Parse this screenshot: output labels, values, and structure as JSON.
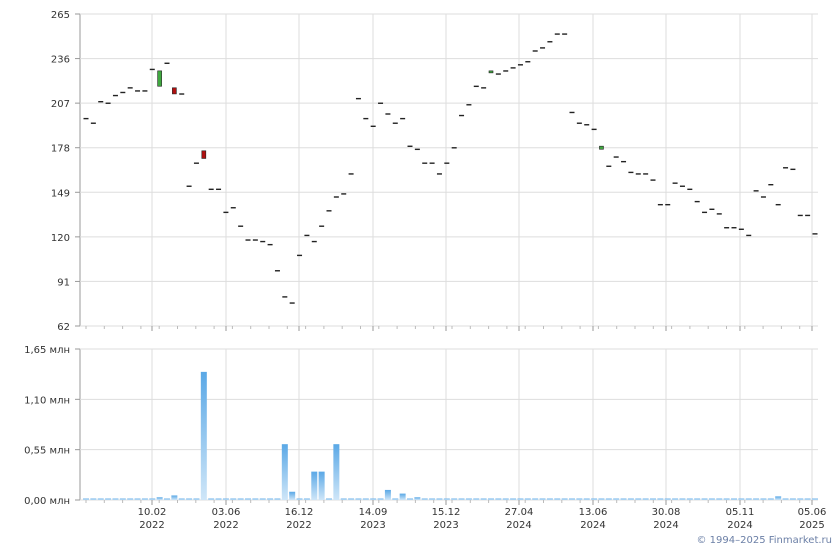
{
  "chart_data": [
    {
      "type": "candlestick",
      "ylim": [
        62,
        265
      ],
      "yticks": [
        "265",
        "236",
        "207",
        "178",
        "149",
        "120",
        "91",
        "62"
      ],
      "grid": true,
      "x_labels": [
        {
          "day": "10.02",
          "year": "2022"
        },
        {
          "day": "03.06",
          "year": "2022"
        },
        {
          "day": "16.12",
          "year": "2022"
        },
        {
          "day": "14.09",
          "year": "2023"
        },
        {
          "day": "15.12",
          "year": "2023"
        },
        {
          "day": "27.04",
          "year": "2024"
        },
        {
          "day": "13.06",
          "year": "2024"
        },
        {
          "day": "30.08",
          "year": "2024"
        },
        {
          "day": "05.11",
          "year": "2024"
        },
        {
          "day": "05.06",
          "year": "2025"
        }
      ],
      "values": [
        {
          "o": 197,
          "c": 197
        },
        {
          "o": 194,
          "c": 194
        },
        {
          "o": 208,
          "c": 208
        },
        {
          "o": 207,
          "c": 207
        },
        {
          "o": 212,
          "c": 212
        },
        {
          "o": 214,
          "c": 214
        },
        {
          "o": 217,
          "c": 217
        },
        {
          "o": 215,
          "c": 215
        },
        {
          "o": 215,
          "c": 215
        },
        {
          "o": 229,
          "c": 229
        },
        {
          "o": 218,
          "c": 228
        },
        {
          "o": 233,
          "c": 233
        },
        {
          "o": 217,
          "c": 213
        },
        {
          "o": 213,
          "c": 213
        },
        {
          "o": 153,
          "c": 153
        },
        {
          "o": 168,
          "c": 168
        },
        {
          "o": 176,
          "c": 171
        },
        {
          "o": 151,
          "c": 151
        },
        {
          "o": 151,
          "c": 151
        },
        {
          "o": 136,
          "c": 136
        },
        {
          "o": 139,
          "c": 139
        },
        {
          "o": 127,
          "c": 127
        },
        {
          "o": 118,
          "c": 118
        },
        {
          "o": 118,
          "c": 118
        },
        {
          "o": 117,
          "c": 117
        },
        {
          "o": 115,
          "c": 115
        },
        {
          "o": 98,
          "c": 98
        },
        {
          "o": 81,
          "c": 81
        },
        {
          "o": 77,
          "c": 77
        },
        {
          "o": 108,
          "c": 108
        },
        {
          "o": 121,
          "c": 121
        },
        {
          "o": 117,
          "c": 117
        },
        {
          "o": 127,
          "c": 127
        },
        {
          "o": 137,
          "c": 137
        },
        {
          "o": 146,
          "c": 146
        },
        {
          "o": 148,
          "c": 148
        },
        {
          "o": 161,
          "c": 161
        },
        {
          "o": 210,
          "c": 210
        },
        {
          "o": 197,
          "c": 197
        },
        {
          "o": 192,
          "c": 192
        },
        {
          "o": 207,
          "c": 207
        },
        {
          "o": 200,
          "c": 200
        },
        {
          "o": 194,
          "c": 194
        },
        {
          "o": 197,
          "c": 197
        },
        {
          "o": 179,
          "c": 179
        },
        {
          "o": 177,
          "c": 177
        },
        {
          "o": 168,
          "c": 168
        },
        {
          "o": 168,
          "c": 168
        },
        {
          "o": 161,
          "c": 161
        },
        {
          "o": 168,
          "c": 168
        },
        {
          "o": 178,
          "c": 178
        },
        {
          "o": 199,
          "c": 199
        },
        {
          "o": 206,
          "c": 206
        },
        {
          "o": 218,
          "c": 218
        },
        {
          "o": 217,
          "c": 217
        },
        {
          "o": 227,
          "c": 228
        },
        {
          "o": 226,
          "c": 226
        },
        {
          "o": 228,
          "c": 228
        },
        {
          "o": 230,
          "c": 230
        },
        {
          "o": 232,
          "c": 232
        },
        {
          "o": 234,
          "c": 234
        },
        {
          "o": 241,
          "c": 241
        },
        {
          "o": 243,
          "c": 243
        },
        {
          "o": 247,
          "c": 247
        },
        {
          "o": 252,
          "c": 252
        },
        {
          "o": 252,
          "c": 252
        },
        {
          "o": 201,
          "c": 201
        },
        {
          "o": 194,
          "c": 194
        },
        {
          "o": 193,
          "c": 193
        },
        {
          "o": 190,
          "c": 190
        },
        {
          "o": 177,
          "c": 179
        },
        {
          "o": 166,
          "c": 166
        },
        {
          "o": 172,
          "c": 172
        },
        {
          "o": 169,
          "c": 169
        },
        {
          "o": 162,
          "c": 162
        },
        {
          "o": 161,
          "c": 161
        },
        {
          "o": 161,
          "c": 161
        },
        {
          "o": 157,
          "c": 157
        },
        {
          "o": 141,
          "c": 141
        },
        {
          "o": 141,
          "c": 141
        },
        {
          "o": 155,
          "c": 155
        },
        {
          "o": 153,
          "c": 153
        },
        {
          "o": 151,
          "c": 151
        },
        {
          "o": 143,
          "c": 143
        },
        {
          "o": 136,
          "c": 136
        },
        {
          "o": 138,
          "c": 138
        },
        {
          "o": 135,
          "c": 135
        },
        {
          "o": 126,
          "c": 126
        },
        {
          "o": 126,
          "c": 126
        },
        {
          "o": 125,
          "c": 125
        },
        {
          "o": 121,
          "c": 121
        },
        {
          "o": 150,
          "c": 150
        },
        {
          "o": 146,
          "c": 146
        },
        {
          "o": 154,
          "c": 154
        },
        {
          "o": 141,
          "c": 141
        },
        {
          "o": 165,
          "c": 165
        },
        {
          "o": 164,
          "c": 164
        },
        {
          "o": 134,
          "c": 134
        },
        {
          "o": 134,
          "c": 134
        },
        {
          "o": 122,
          "c": 122
        }
      ],
      "colors": {
        "up": "#3fa83f",
        "down": "#b01010",
        "flat": "#222222"
      }
    },
    {
      "type": "bar",
      "ylim": [
        0,
        1.65
      ],
      "yticks": [
        "1,65 млн",
        "1,10 млн",
        "0,55 млн",
        "0,00 млн"
      ],
      "grid": true,
      "values": [
        0.01,
        0.01,
        0.01,
        0.01,
        0.01,
        0.01,
        0.01,
        0.01,
        0.01,
        0.01,
        0.03,
        0.01,
        0.05,
        0.01,
        0.01,
        0.01,
        1.4,
        0.01,
        0.01,
        0.01,
        0.01,
        0.01,
        0.01,
        0.01,
        0.01,
        0.01,
        0.01,
        0.61,
        0.09,
        0.01,
        0.01,
        0.31,
        0.31,
        0.01,
        0.61,
        0.01,
        0.01,
        0.01,
        0.01,
        0.01,
        0.01,
        0.11,
        0.01,
        0.07,
        0.01,
        0.03,
        0.01,
        0.01,
        0.01,
        0.01,
        0.01,
        0.01,
        0.01,
        0.01,
        0.01,
        0.01,
        0.01,
        0.01,
        0.01,
        0.01,
        0.01,
        0.01,
        0.01,
        0.01,
        0.01,
        0.01,
        0.01,
        0.01,
        0.01,
        0.01,
        0.01,
        0.01,
        0.01,
        0.01,
        0.01,
        0.01,
        0.01,
        0.01,
        0.01,
        0.01,
        0.01,
        0.01,
        0.01,
        0.01,
        0.01,
        0.01,
        0.01,
        0.01,
        0.01,
        0.01,
        0.01,
        0.01,
        0.01,
        0.01,
        0.04,
        0.01,
        0.01,
        0.01,
        0.01,
        0.01
      ],
      "color": "#7ab8e8"
    }
  ],
  "copyright": "© 1994–2025 Finmarket.ru"
}
